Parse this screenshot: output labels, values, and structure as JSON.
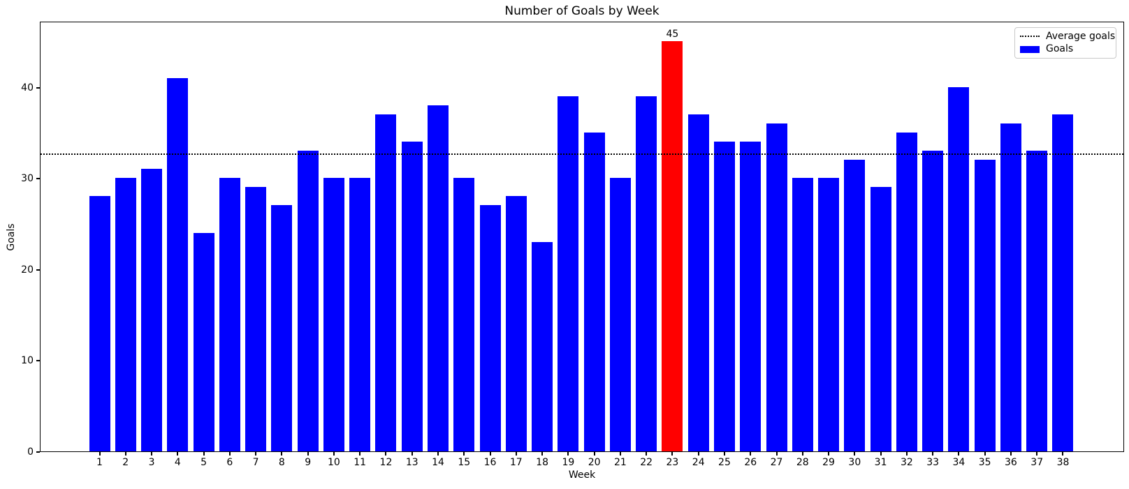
{
  "chart_data": {
    "type": "bar",
    "title": "Number of Goals by Week",
    "xlabel": "Week",
    "ylabel": "Goals",
    "categories": [
      "1",
      "2",
      "3",
      "4",
      "5",
      "6",
      "7",
      "8",
      "9",
      "10",
      "11",
      "12",
      "13",
      "14",
      "15",
      "16",
      "17",
      "18",
      "19",
      "20",
      "21",
      "22",
      "23",
      "24",
      "25",
      "26",
      "27",
      "28",
      "29",
      "30",
      "31",
      "32",
      "33",
      "34",
      "35",
      "36",
      "37",
      "38"
    ],
    "values": [
      28,
      30,
      31,
      41,
      24,
      30,
      29,
      27,
      33,
      30,
      30,
      37,
      34,
      38,
      30,
      27,
      28,
      23,
      39,
      35,
      30,
      39,
      45,
      37,
      34,
      34,
      36,
      30,
      30,
      32,
      29,
      35,
      33,
      40,
      32,
      36,
      33,
      37
    ],
    "bar_color": "#0000ff",
    "highlight_index": 22,
    "highlight_color": "#ff0000",
    "highlight_label": "45",
    "average_value": 32.79,
    "average_line_color": "#000000",
    "average_line_style": "dotted",
    "ylim": [
      0,
      47.25
    ],
    "yticks": [
      0,
      10,
      20,
      30,
      40
    ],
    "grid": false,
    "legend_position": "upper right",
    "legend": [
      {
        "label": "Average goals",
        "marker": "dotted-line",
        "color": "#000000"
      },
      {
        "label": "Goals",
        "marker": "patch",
        "color": "#0000ff"
      }
    ]
  }
}
